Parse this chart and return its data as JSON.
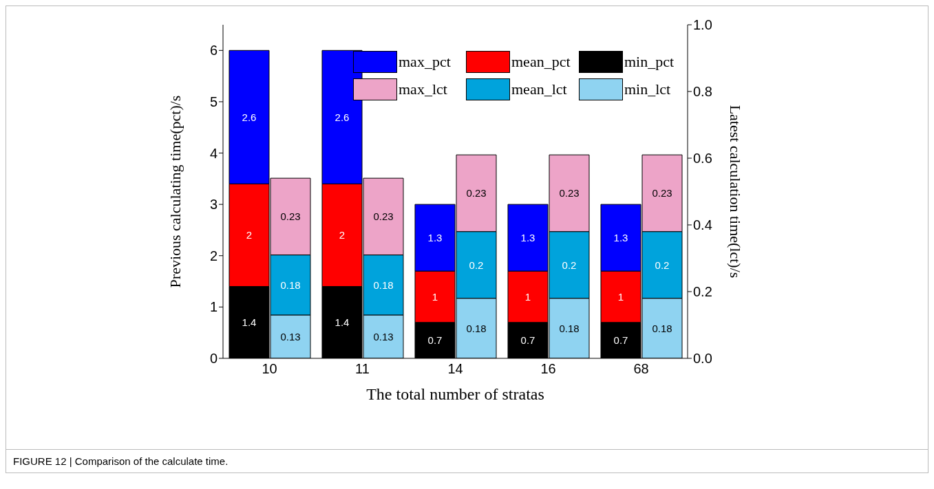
{
  "chart_data": {
    "type": "bar",
    "stacked": true,
    "xlabel": "The total number of stratas",
    "ylabel": "Previous calculating time(pct)/s",
    "y2label": "Latest calculation time(lct)/s",
    "categories": [
      "10",
      "11",
      "14",
      "16",
      "68"
    ],
    "series": [
      {
        "name": "min_pct",
        "color": "#000000",
        "values": [
          1.4,
          1.4,
          0.7,
          0.7,
          0.7
        ]
      },
      {
        "name": "mean_pct",
        "color": "#ff0000",
        "values": [
          2,
          2,
          1,
          1,
          1
        ]
      },
      {
        "name": "max_pct",
        "color": "#0000ff",
        "values": [
          2.6,
          2.6,
          1.3,
          1.3,
          1.3
        ]
      },
      {
        "name": "min_lct",
        "color": "#8fd3f1",
        "axis": "y2",
        "values": [
          0.13,
          0.13,
          0.18,
          0.18,
          0.18
        ]
      },
      {
        "name": "mean_lct",
        "color": "#00a3dc",
        "axis": "y2",
        "values": [
          0.18,
          0.18,
          0.2,
          0.2,
          0.2
        ]
      },
      {
        "name": "max_lct",
        "color": "#eda4c8",
        "axis": "y2",
        "values": [
          0.23,
          0.23,
          0.23,
          0.23,
          0.23
        ]
      }
    ],
    "ylim": [
      0,
      6.5
    ],
    "yticks": [
      0,
      1,
      2,
      3,
      4,
      5,
      6
    ],
    "y2lim": [
      0,
      1.0
    ],
    "y2ticks": [
      {
        "value": 0,
        "label": "0.0"
      },
      {
        "value": 0.2,
        "label": "0.2"
      },
      {
        "value": 0.4,
        "label": "0.4"
      },
      {
        "value": 0.6,
        "label": "0.6"
      },
      {
        "value": 0.8,
        "label": "0.8"
      },
      {
        "value": 1,
        "label": "1.0"
      }
    ],
    "data_labels": true,
    "grid": false,
    "legend": "top right",
    "annotations": [
      "FIGURE 12 | Comparison of the calculate time."
    ]
  }
}
